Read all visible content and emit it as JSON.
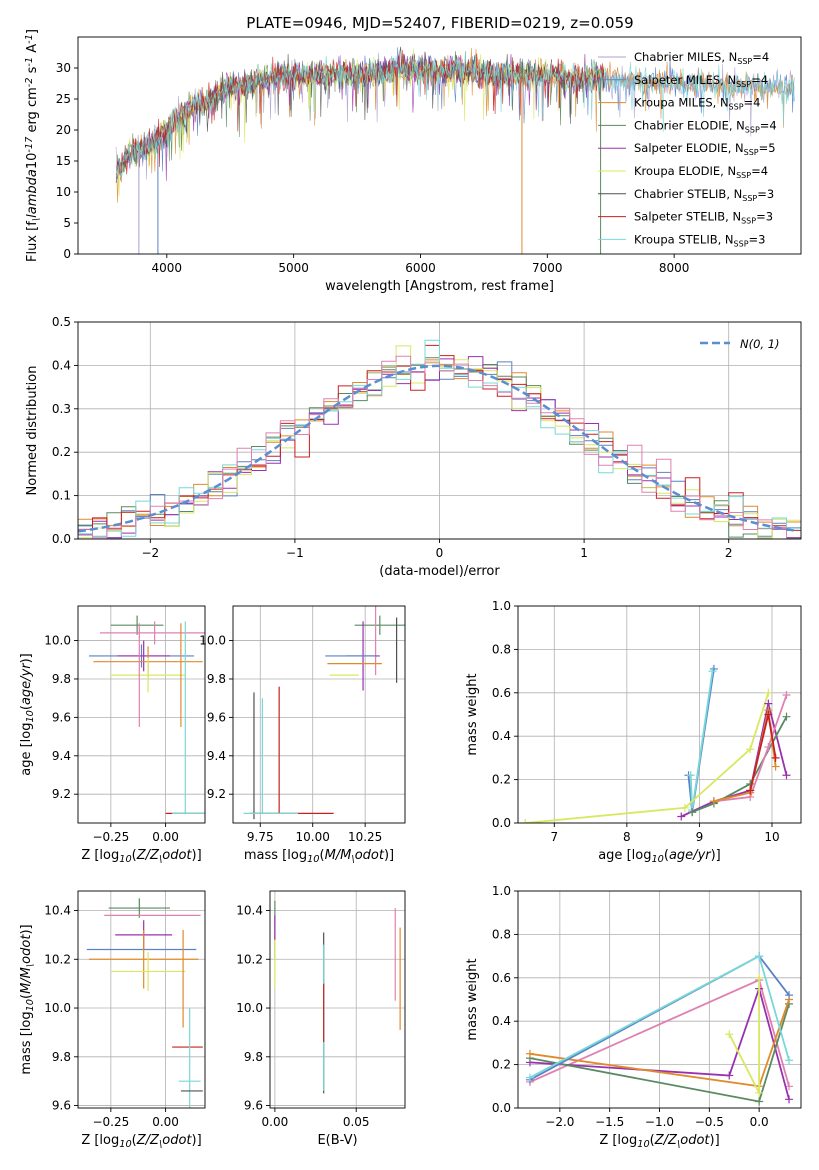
{
  "colors": {
    "chabrier_miles": "#b0a0d0",
    "salpeter_miles": "#5b82c8",
    "kroupa_miles": "#e08a2c",
    "chabrier_elodie": "#5a8a60",
    "salpeter_elodie": "#9a30b0",
    "kroupa_elodie": "#d8e860",
    "chabrier_stelib": "#505050",
    "salpeter_stelib": "#c82020",
    "kroupa_stelib": "#78d8d8",
    "pink": "#e080b0",
    "normal_curve": "#5a8ed0",
    "grid": "#b0b0b0"
  },
  "chart_data": [
    {
      "id": "spectrum",
      "type": "line",
      "title": "PLATE=0946, MJD=52407, FIBERID=0219, z=0.059",
      "xlabel": "wavelength [Angstrom, rest frame]",
      "ylabel": "Flux [f$_\\lambda$10$^{-17}$ erg cm$^{-2}$ s$^{-1}$ A$^{-1}$]",
      "xlim": [
        3300,
        9000
      ],
      "ylim": [
        0,
        35
      ],
      "xticks": [
        4000,
        5000,
        6000,
        7000,
        8000
      ],
      "yticks": [
        0,
        5,
        10,
        15,
        20,
        25,
        30
      ],
      "legend_position": "top-right",
      "legend": [
        {
          "label": "Chabrier MILES, N",
          "sub": "SSP",
          "suffix": "=4",
          "color": "#b0a0d0"
        },
        {
          "label": "Salpeter MILES, N",
          "sub": "SSP",
          "suffix": "=4",
          "color": "#5b82c8"
        },
        {
          "label": "Kroupa MILES, N",
          "sub": "SSP",
          "suffix": "=4",
          "color": "#e08a2c"
        },
        {
          "label": "Chabrier ELODIE, N",
          "sub": "SSP",
          "suffix": "=4",
          "color": "#5a8a60"
        },
        {
          "label": "Salpeter ELODIE, N",
          "sub": "SSP",
          "suffix": "=5",
          "color": "#9a30b0"
        },
        {
          "label": "Kroupa ELODIE, N",
          "sub": "SSP",
          "suffix": "=4",
          "color": "#d8e860"
        },
        {
          "label": "Chabrier STELIB, N",
          "sub": "SSP",
          "suffix": "=3",
          "color": "#505050"
        },
        {
          "label": "Salpeter STELIB, N",
          "sub": "SSP",
          "suffix": "=3",
          "color": "#c82020"
        },
        {
          "label": "Kroupa STELIB, N",
          "sub": "SSP",
          "suffix": "=3",
          "color": "#78d8d8"
        }
      ],
      "envelope": {
        "x": [
          3600,
          3700,
          3800,
          3900,
          4000,
          4100,
          4200,
          4300,
          4400,
          4500,
          4600,
          4700,
          4800,
          4900,
          5000,
          5200,
          5400,
          5600,
          5800,
          6000,
          6200,
          6400,
          6600,
          6800,
          7000,
          7200,
          7400,
          7600,
          7800,
          8000,
          8200,
          8400,
          8600,
          8800,
          9000
        ],
        "y": [
          13,
          16,
          17,
          18,
          20,
          22,
          24,
          24,
          26,
          27,
          27,
          28,
          28,
          29,
          29,
          29,
          29,
          29,
          30,
          30,
          29.5,
          29.5,
          29,
          29,
          29,
          28.5,
          28.5,
          28,
          28,
          27.5,
          27.5,
          27,
          27,
          27,
          26
        ]
      },
      "absorption_lines": [
        {
          "x": 3780,
          "y": 0
        },
        {
          "x": 3930,
          "y": 0
        },
        {
          "x": 6800,
          "y": 0
        },
        {
          "x": 7420,
          "y": 0
        }
      ]
    },
    {
      "id": "residuals",
      "type": "histogram",
      "xlabel": "(data-model)/error",
      "ylabel": "Normed distribution",
      "xlim": [
        -2.5,
        2.5
      ],
      "ylim": [
        0,
        0.5
      ],
      "xticks": [
        -2,
        -1,
        0,
        1,
        2
      ],
      "yticks": [
        0.0,
        0.1,
        0.2,
        0.3,
        0.4,
        0.5
      ],
      "legend_position": "top-right",
      "legend": [
        {
          "label": "$\\mathcal{N}(0, 1)$",
          "color": "#5a8ed0"
        }
      ],
      "bin_width": 0.1,
      "bin_start": -2.5,
      "series_colors": [
        "#5b82c8",
        "#e08a2c",
        "#5a8a60",
        "#9a30b0",
        "#d8e860",
        "#c82020",
        "#78d8d8",
        "#e080b0"
      ]
    },
    {
      "id": "age_vs_Z",
      "type": "errorbar",
      "xlabel": "Z [log$_{10}$($Z/Z_\\odot$)]",
      "ylabel": "age  [log$_{10}$($age/yr$)]",
      "xlim": [
        -0.4,
        0.18
      ],
      "ylim": [
        9.05,
        10.18
      ],
      "xticks": [
        -0.25,
        0.0
      ],
      "xtick_labels": [
        "−0.25",
        "0.00"
      ],
      "yticks": [
        9.2,
        9.4,
        9.6,
        9.8,
        10.0
      ],
      "points": [
        {
          "x": -0.13,
          "y": 10.08,
          "xerr": 0.12,
          "yerr": 0.05,
          "color": "#5a8a60"
        },
        {
          "x": -0.05,
          "y": 10.04,
          "xerr": 0.25,
          "yerr": 0.06,
          "color": "#e080b0"
        },
        {
          "x": -0.11,
          "y": 9.92,
          "xerr": 0.24,
          "yerr": 0.06,
          "color": "#5b82c8"
        },
        {
          "x": -0.1,
          "y": 9.92,
          "xerr": 0.12,
          "yerr": 0.08,
          "color": "#9a30b0"
        },
        {
          "x": -0.08,
          "y": 9.89,
          "xerr": 0.25,
          "yerr": 0.08,
          "color": "#e08a2c"
        },
        {
          "x": -0.08,
          "y": 9.82,
          "xerr": 0.17,
          "yerr": 0.09,
          "color": "#d8e860"
        },
        {
          "x": -0.12,
          "y": 9.82,
          "xerr": 0.0,
          "yerr": 0.27,
          "color": "#e080b0"
        },
        {
          "x": 0.07,
          "y": 9.82,
          "xerr": 0.0,
          "yerr": 0.27,
          "color": "#e08a2c"
        },
        {
          "x": 0.09,
          "y": 9.6,
          "xerr": 0.0,
          "yerr": 0.5,
          "color": "#78d8d8"
        },
        {
          "x": 0.09,
          "y": 9.1,
          "xerr": 0.09,
          "yerr": 0.0,
          "color": "#c82020"
        },
        {
          "x": 0.11,
          "y": 9.1,
          "xerr": 0.08,
          "yerr": 0.0,
          "color": "#78d8d8"
        }
      ]
    },
    {
      "id": "age_vs_mass",
      "type": "errorbar",
      "xlabel": "mass [log$_{10}$($M/M_\\odot$)]",
      "ylabel": "",
      "xlim": [
        9.62,
        10.44
      ],
      "ylim": [
        9.05,
        10.18
      ],
      "xticks": [
        9.75,
        10.0,
        10.25
      ],
      "xtick_labels": [
        "9.75",
        "10.00",
        "10.25"
      ],
      "yticks": [
        9.2,
        9.4,
        9.6,
        9.8,
        10.0
      ],
      "points": [
        {
          "x": 10.32,
          "y": 10.08,
          "xerr": 0.12,
          "yerr": 0.05,
          "color": "#5a8a60"
        },
        {
          "x": 10.3,
          "y": 10.04,
          "xerr": 0.0,
          "yerr": 0.22,
          "color": "#e080b0"
        },
        {
          "x": 10.24,
          "y": 9.92,
          "xerr": 0.08,
          "yerr": 0.18,
          "color": "#9a30b0"
        },
        {
          "x": 10.18,
          "y": 9.92,
          "xerr": 0.12,
          "yerr": 0.0,
          "color": "#5b82c8"
        },
        {
          "x": 10.2,
          "y": 9.88,
          "xerr": 0.13,
          "yerr": 0.0,
          "color": "#e08a2c"
        },
        {
          "x": 10.15,
          "y": 9.82,
          "xerr": 0.07,
          "yerr": 0.0,
          "color": "#d8e860"
        },
        {
          "x": 10.4,
          "y": 9.95,
          "xerr": 0.0,
          "yerr": 0.17,
          "color": "#505050"
        },
        {
          "x": 9.84,
          "y": 9.43,
          "xerr": 0.0,
          "yerr": 0.33,
          "color": "#c82020"
        },
        {
          "x": 9.72,
          "y": 9.4,
          "xerr": 0.0,
          "yerr": 0.33,
          "color": "#505050"
        },
        {
          "x": 9.76,
          "y": 9.4,
          "xerr": 0.0,
          "yerr": 0.3,
          "color": "#78d8d8"
        },
        {
          "x": 9.9,
          "y": 9.1,
          "xerr": 0.2,
          "yerr": 0.0,
          "color": "#c82020"
        },
        {
          "x": 9.8,
          "y": 9.1,
          "xerr": 0.13,
          "yerr": 0.0,
          "color": "#78d8d8"
        }
      ]
    },
    {
      "id": "weight_vs_age",
      "type": "line",
      "xlabel": "age  [log$_{10}$($age/yr$)]",
      "ylabel": "mass weight",
      "xlim": [
        6.5,
        10.4
      ],
      "ylim": [
        0,
        1.0
      ],
      "xticks": [
        7,
        8,
        9,
        10
      ],
      "yticks": [
        0.0,
        0.2,
        0.4,
        0.6,
        0.8,
        1.0
      ],
      "series": [
        {
          "color": "#5b82c8",
          "x": [
            8.85,
            8.9,
            9.2
          ],
          "y": [
            0.22,
            0.05,
            0.71
          ]
        },
        {
          "color": "#78d8d8",
          "x": [
            8.88,
            8.9,
            9.18
          ],
          "y": [
            0.22,
            0.06,
            0.7
          ]
        },
        {
          "color": "#d8e860",
          "x": [
            6.6,
            8.8,
            9.7,
            9.95
          ],
          "y": [
            0.0,
            0.07,
            0.34,
            0.6
          ]
        },
        {
          "color": "#9a30b0",
          "x": [
            8.75,
            9.2,
            9.7,
            9.95,
            10.2
          ],
          "y": [
            0.03,
            0.1,
            0.15,
            0.55,
            0.22
          ]
        },
        {
          "color": "#5a8a60",
          "x": [
            8.9,
            9.2,
            9.7,
            10.2
          ],
          "y": [
            0.05,
            0.09,
            0.18,
            0.49
          ]
        },
        {
          "color": "#e080b0",
          "x": [
            9.2,
            9.7,
            9.95,
            10.2
          ],
          "y": [
            0.1,
            0.12,
            0.35,
            0.59
          ]
        },
        {
          "color": "#e08a2c",
          "x": [
            9.2,
            9.7,
            9.95,
            10.05
          ],
          "y": [
            0.1,
            0.14,
            0.52,
            0.26
          ]
        },
        {
          "color": "#c82020",
          "x": [
            9.7,
            9.95,
            10.05
          ],
          "y": [
            0.15,
            0.5,
            0.3
          ]
        }
      ]
    },
    {
      "id": "mass_vs_Z",
      "type": "errorbar",
      "xlabel": "Z [log$_{10}$($Z/Z_\\odot$)]",
      "ylabel": "mass [log$_{10}$($M/M_\\odot$)]",
      "xlim": [
        -0.4,
        0.18
      ],
      "ylim": [
        9.59,
        10.48
      ],
      "xticks": [
        -0.25,
        0.0
      ],
      "xtick_labels": [
        "−0.25",
        "0.00"
      ],
      "yticks": [
        9.6,
        9.8,
        10.0,
        10.2,
        10.4
      ],
      "points": [
        {
          "x": -0.12,
          "y": 10.41,
          "xerr": 0.14,
          "yerr": 0.04,
          "color": "#5a8a60"
        },
        {
          "x": -0.06,
          "y": 10.38,
          "xerr": 0.22,
          "yerr": 0.0,
          "color": "#e080b0"
        },
        {
          "x": -0.1,
          "y": 10.3,
          "xerr": 0.13,
          "yerr": 0.06,
          "color": "#9a30b0"
        },
        {
          "x": -0.11,
          "y": 10.24,
          "xerr": 0.25,
          "yerr": 0.0,
          "color": "#5b82c8"
        },
        {
          "x": -0.1,
          "y": 10.2,
          "xerr": 0.25,
          "yerr": 0.12,
          "color": "#e08a2c"
        },
        {
          "x": -0.08,
          "y": 10.15,
          "xerr": 0.17,
          "yerr": 0.08,
          "color": "#d8e860"
        },
        {
          "x": 0.08,
          "y": 10.12,
          "xerr": 0.0,
          "yerr": 0.2,
          "color": "#e08a2c"
        },
        {
          "x": 0.1,
          "y": 9.84,
          "xerr": 0.07,
          "yerr": 0.0,
          "color": "#c82020"
        },
        {
          "x": 0.11,
          "y": 9.7,
          "xerr": 0.05,
          "yerr": 0.3,
          "color": "#78d8d8"
        },
        {
          "x": 0.12,
          "y": 9.66,
          "xerr": 0.05,
          "yerr": 0.0,
          "color": "#505050"
        }
      ]
    },
    {
      "id": "mass_vs_EBV",
      "type": "errorbar",
      "xlabel": "E(B-V)",
      "ylabel": "",
      "xlim": [
        -0.003,
        0.08
      ],
      "ylim": [
        9.59,
        10.48
      ],
      "xticks": [
        0.0,
        0.05
      ],
      "xtick_labels": [
        "0.00",
        "0.05"
      ],
      "yticks": [
        9.6,
        9.8,
        10.0,
        10.2,
        10.4
      ],
      "points": [
        {
          "x": 0.0,
          "y": 10.32,
          "xerr": 0.0,
          "yerr": 0.12,
          "color": "#5a8a60"
        },
        {
          "x": 0.0,
          "y": 10.2,
          "xerr": 0.0,
          "yerr": 0.12,
          "color": "#d8e860"
        },
        {
          "x": 0.0,
          "y": 10.33,
          "xerr": 0.0,
          "yerr": 0.05,
          "color": "#9a30b0"
        },
        {
          "x": 0.03,
          "y": 9.98,
          "xerr": 0.0,
          "yerr": 0.33,
          "color": "#505050"
        },
        {
          "x": 0.03,
          "y": 9.96,
          "xerr": 0.0,
          "yerr": 0.3,
          "color": "#78d8d8"
        },
        {
          "x": 0.03,
          "y": 9.98,
          "xerr": 0.0,
          "yerr": 0.12,
          "color": "#c82020"
        },
        {
          "x": 0.074,
          "y": 10.22,
          "xerr": 0.0,
          "yerr": 0.19,
          "color": "#e080b0"
        },
        {
          "x": 0.077,
          "y": 10.12,
          "xerr": 0.0,
          "yerr": 0.21,
          "color": "#e08a2c"
        }
      ]
    },
    {
      "id": "weight_vs_Z",
      "type": "line",
      "xlabel": "Z [log$_{10}$($Z/Z_\\odot$)]",
      "ylabel": "mass weight",
      "xlim": [
        -2.42,
        0.42
      ],
      "ylim": [
        0,
        1.0
      ],
      "xticks": [
        -2.0,
        -1.5,
        -1.0,
        -0.5,
        0.0
      ],
      "xtick_labels": [
        "−2.0",
        "−1.5",
        "−1.0",
        "−0.5",
        "0.0"
      ],
      "yticks": [
        0.0,
        0.2,
        0.4,
        0.6,
        0.8,
        1.0
      ],
      "series": [
        {
          "color": "#e080b0",
          "x": [
            -2.3,
            0.0,
            0.3
          ],
          "y": [
            0.12,
            0.59,
            0.1
          ]
        },
        {
          "color": "#9a30b0",
          "x": [
            -2.3,
            -0.3,
            0.0,
            0.3
          ],
          "y": [
            0.21,
            0.15,
            0.55,
            0.04
          ]
        },
        {
          "color": "#5a8a60",
          "x": [
            -2.3,
            0.0,
            0.3
          ],
          "y": [
            0.23,
            0.03,
            0.48
          ]
        },
        {
          "color": "#e08a2c",
          "x": [
            -2.3,
            0.0,
            0.3
          ],
          "y": [
            0.25,
            0.1,
            0.5
          ]
        },
        {
          "color": "#5b82c8",
          "x": [
            -2.3,
            0.0,
            0.3
          ],
          "y": [
            0.13,
            0.7,
            0.52
          ]
        },
        {
          "color": "#78d8d8",
          "x": [
            -2.3,
            0.0,
            0.3
          ],
          "y": [
            0.14,
            0.7,
            0.22
          ]
        },
        {
          "color": "#d8e860",
          "x": [
            -0.3,
            0.0,
            0.0
          ],
          "y": [
            0.34,
            0.07,
            0.6
          ]
        }
      ]
    }
  ]
}
